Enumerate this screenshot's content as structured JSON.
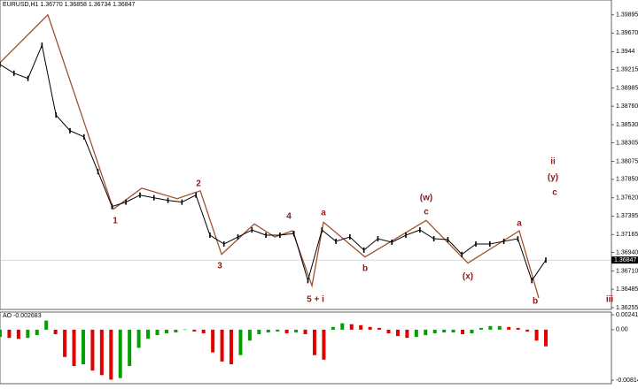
{
  "chart_data": [
    {
      "type": "line",
      "title": "EURUSD,H1 1.36770 1.36858 1.36734 1.36847",
      "values": [
        1.39278,
        1.3917,
        1.39105,
        1.39517,
        1.3865,
        1.38455,
        1.38379,
        1.37946,
        1.37513,
        1.37567,
        1.37654,
        1.37621,
        1.37589,
        1.37567,
        1.37654,
        1.37156,
        1.37047,
        1.37134,
        1.37221,
        1.37156,
        1.37156,
        1.37177,
        1.36592,
        1.37221,
        1.3708,
        1.37134,
        1.36971,
        1.37112,
        1.37069,
        1.37156,
        1.37221,
        1.37112,
        1.37101,
        1.36917,
        1.37047,
        1.37047,
        1.3708,
        1.37112,
        1.36592,
        1.36847
      ],
      "color": "#000000",
      "current_price": 1.36847,
      "ylim": [
        1.36233,
        1.40058
      ],
      "yticks": [
        1.39895,
        {
          "value": 1.3967,
          "label": "1.39670"
        },
        1.3944,
        1.39215,
        1.38985,
        {
          "value": 1.3876,
          "label": "1.38760"
        },
        {
          "value": 1.3853,
          "label": "1.38530"
        },
        1.38305,
        1.38075,
        {
          "value": 1.3785,
          "label": "1.37850"
        },
        {
          "value": 1.3762,
          "label": "1.37620"
        },
        1.37395,
        1.37165,
        {
          "value": 1.3694,
          "label": "1.36940"
        },
        {
          "value": 1.3671,
          "label": "1.36710"
        },
        1.36485,
        1.36255
      ],
      "wave": {
        "color": "#a0522d",
        "x": [
          0,
          3.42,
          8.1,
          10.13,
          12.66,
          14.31,
          15.83,
          18.17,
          19.63,
          20.89,
          22.29,
          23.11,
          26.08,
          30.45,
          33.43,
          37.1,
          38.49
        ],
        "values": [
          1.393,
          1.39896,
          1.3748,
          1.3774,
          1.3761,
          1.37708,
          1.36917,
          1.37296,
          1.37134,
          1.3721,
          1.36527,
          1.37318,
          1.36885,
          1.3734,
          1.36809,
          1.3721,
          1.36376
        ]
      },
      "annotations": [
        "1",
        "2",
        "3",
        "4",
        "5 + i",
        "a",
        "b",
        "(w)",
        "c",
        "(x)",
        "a",
        "b",
        "ii",
        "(y)",
        "c",
        "iii"
      ]
    },
    {
      "type": "bar",
      "title": "AO -0.002683",
      "values": [
        -0.00117,
        -0.00132,
        -0.00147,
        -0.00132,
        -0.00088,
        0.00147,
        -0.00073,
        -0.0044,
        -0.00586,
        -0.00557,
        -0.00659,
        -0.00733,
        -0.00806,
        -0.0078,
        -0.00586,
        -0.00293,
        -0.00147,
        -0.00088,
        -0.00059,
        -0.00044,
        5e-05,
        -0.00029,
        -0.00059,
        -0.00366,
        -0.00513,
        -0.00557,
        -0.0041,
        -0.00176,
        -0.00073,
        -0.00044,
        -0.00029,
        -0.00059,
        -0.00044,
        -0.00073,
        -0.0041,
        -0.00483,
        0.00044,
        0.00103,
        0.00088,
        0.00073,
        0.00044,
        0.00029,
        -0.00059,
        -0.00103,
        -0.00132,
        -0.00117,
        -0.00088,
        -0.00059,
        -0.00044,
        -0.00044,
        -0.00073,
        -0.00059,
        0.00029,
        0.00059,
        0.00059,
        0.00044,
        0.00029,
        -0.00029,
        -0.00176,
        -0.00268
      ],
      "up_color": "#00a000",
      "down_color": "#e00000",
      "ylim": [
        -0.00814,
        0.00241
      ],
      "yticks": [
        0.00241,
        {
          "value": 0,
          "label": "0.00"
        },
        -0.00814
      ]
    }
  ]
}
